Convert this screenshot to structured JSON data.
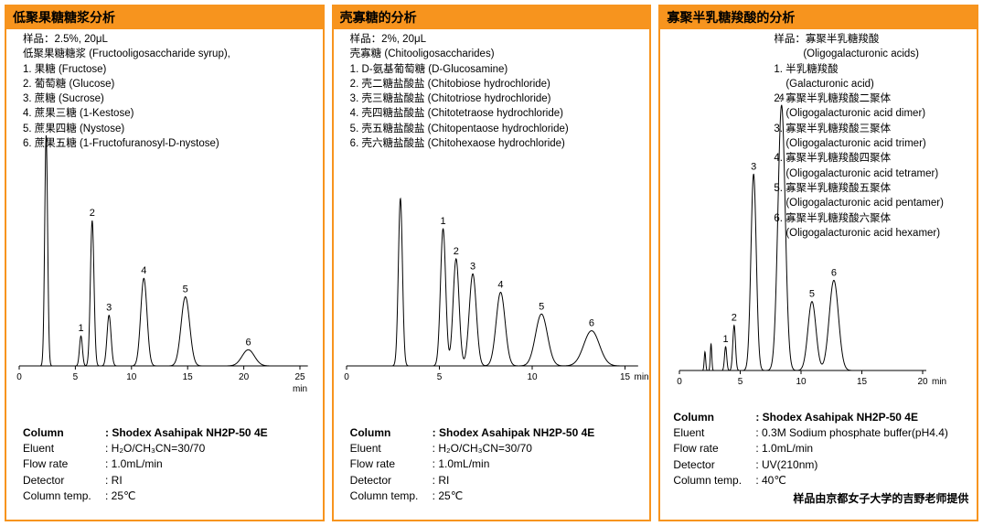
{
  "accent_color": "#F7941E",
  "misc": {
    "colon": ":"
  },
  "panels": [
    {
      "title": "低聚果糖糖浆分析",
      "sample_lines": [
        {
          "text": "样品：2.5%, 20μL",
          "indent": 0
        },
        {
          "text": "低聚果糖糖浆 (Fructooligosaccharide syrup),",
          "indent": 0
        },
        {
          "text": "1. 果糖 (Fructose)",
          "indent": 0
        },
        {
          "text": "2. 葡萄糖 (Glucose)",
          "indent": 0
        },
        {
          "text": "3. 蔗糖 (Sucrose)",
          "indent": 0
        },
        {
          "text": "4. 蔗果三糖 (1-Kestose)",
          "indent": 0
        },
        {
          "text": "5. 蔗果四糖 (Nystose)",
          "indent": 0
        },
        {
          "text": "6. 蔗果五糖 (1-Fructofuranosyl-D-nystose)",
          "indent": 0
        }
      ],
      "conditions": [
        {
          "label": "Column",
          "value": "Shodex Asahipak NH2P-50 4E",
          "bold": true
        },
        {
          "label": "Eluent",
          "value": "H₂O/CH₃CN=30/70",
          "bold": false
        },
        {
          "label": "Flow rate",
          "value": "1.0mL/min",
          "bold": false
        },
        {
          "label": "Detector",
          "value": "RI",
          "bold": false
        },
        {
          "label": "Column temp.",
          "value": "25℃",
          "bold": false
        }
      ]
    },
    {
      "title": "壳寡糖的分析",
      "sample_lines": [
        {
          "text": "样品：2%, 20μL",
          "indent": 0
        },
        {
          "text": "壳寡糖 (Chitooligosaccharides)",
          "indent": 0
        },
        {
          "text": "1. D-氨基葡萄糖 (D-Glucosamine)",
          "indent": 0
        },
        {
          "text": "2. 壳二糖盐酸盐 (Chitobiose hydrochloride)",
          "indent": 0
        },
        {
          "text": "3. 壳三糖盐酸盐 (Chitotriose hydrochloride)",
          "indent": 0
        },
        {
          "text": "4. 壳四糖盐酸盐 (Chitotetraose hydrochloride)",
          "indent": 0
        },
        {
          "text": "5. 壳五糖盐酸盐 (Chitopentaose hydrochloride)",
          "indent": 0
        },
        {
          "text": "6. 壳六糖盐酸盐 (Chitohexaose hydrochloride)",
          "indent": 0
        }
      ],
      "conditions": [
        {
          "label": "Column",
          "value": "Shodex Asahipak NH2P-50 4E",
          "bold": true
        },
        {
          "label": "Eluent",
          "value": "H₂O/CH₃CN=30/70",
          "bold": false
        },
        {
          "label": "Flow rate",
          "value": "1.0mL/min",
          "bold": false
        },
        {
          "label": "Detector",
          "value": "RI",
          "bold": false
        },
        {
          "label": "Column temp.",
          "value": "25℃",
          "bold": false
        }
      ]
    },
    {
      "title": "寡聚半乳糖羧酸的分析",
      "sample_lines": [
        {
          "text": "样品：寡聚半乳糖羧酸",
          "indent": 0
        },
        {
          "text": "(Oligogalacturonic acids)",
          "indent": 2
        },
        {
          "text": "1. 半乳糖羧酸",
          "indent": 0
        },
        {
          "text": "(Galacturonic acid)",
          "indent": 1
        },
        {
          "text": "2. 寡聚半乳糖羧酸二聚体",
          "indent": 0
        },
        {
          "text": "(Oligogalacturonic acid dimer)",
          "indent": 1
        },
        {
          "text": "3. 寡聚半乳糖羧酸三聚体",
          "indent": 0
        },
        {
          "text": "(Oligogalacturonic acid trimer)",
          "indent": 1
        },
        {
          "text": "4. 寡聚半乳糖羧酸四聚体",
          "indent": 0
        },
        {
          "text": "(Oligogalacturonic acid tetramer)",
          "indent": 1
        },
        {
          "text": "5. 寡聚半乳糖羧酸五聚体",
          "indent": 0
        },
        {
          "text": "(Oligogalacturonic acid pentamer)",
          "indent": 1
        },
        {
          "text": "6. 寡聚半乳糖羧酸六聚体",
          "indent": 0
        },
        {
          "text": "(Oligogalacturonic acid hexamer)",
          "indent": 1
        }
      ],
      "conditions": [
        {
          "label": "Column",
          "value": "Shodex Asahipak NH2P-50 4E",
          "bold": true
        },
        {
          "label": "Eluent",
          "value": "0.3M Sodium phosphate buffer(pH4.4)",
          "bold": false
        },
        {
          "label": "Flow rate",
          "value": "1.0mL/min",
          "bold": false
        },
        {
          "label": "Detector",
          "value": "UV(210nm)",
          "bold": false
        },
        {
          "label": "Column temp.",
          "value": "40℃",
          "bold": false
        }
      ],
      "footer": "样品由京都女子大学的吉野老师提供"
    }
  ],
  "chart_data": [
    {
      "type": "line",
      "title": "低聚果糖糖浆分析 (Fructooligosaccharide syrup)",
      "xlabel": "min",
      "x_range": [
        0,
        25.7
      ],
      "x_ticks": [
        0,
        5,
        10,
        15,
        20,
        25
      ],
      "xlabel_pos": "below",
      "grid": false,
      "y_axis": "detector response (RI, unlabeled, relative to tallest peak)",
      "peaks": [
        {
          "label": "",
          "name": "void/solvent",
          "time_min": 2.4,
          "rel_height": 1.0,
          "sigma_min": 0.13
        },
        {
          "label": "1",
          "name": "果糖 (Fructose)",
          "time_min": 5.5,
          "rel_height": 0.13,
          "sigma_min": 0.13
        },
        {
          "label": "2",
          "name": "葡萄糖 (Glucose)",
          "time_min": 6.5,
          "rel_height": 0.63,
          "sigma_min": 0.16
        },
        {
          "label": "3",
          "name": "蔗糖 (Sucrose)",
          "time_min": 8.0,
          "rel_height": 0.22,
          "sigma_min": 0.18
        },
        {
          "label": "4",
          "name": "蔗果三糖 (1-Kestose)",
          "time_min": 11.1,
          "rel_height": 0.38,
          "sigma_min": 0.28
        },
        {
          "label": "5",
          "name": "蔗果四糖 (Nystose)",
          "time_min": 14.8,
          "rel_height": 0.3,
          "sigma_min": 0.38
        },
        {
          "label": "6",
          "name": "蔗果五糖 (1-Fructofuranosyl-D-nystose)",
          "time_min": 20.4,
          "rel_height": 0.07,
          "sigma_min": 0.55
        }
      ]
    },
    {
      "type": "line",
      "title": "壳寡糖的分析 (Chitooligosaccharides)",
      "xlabel": "min",
      "x_range": [
        0,
        15.7
      ],
      "x_ticks": [
        0,
        5,
        10,
        15
      ],
      "xlabel_pos": "right",
      "grid": false,
      "y_axis": "detector response (RI, unlabeled, relative to tallest peak)",
      "peaks": [
        {
          "label": "",
          "name": "void/solvent",
          "time_min": 2.9,
          "rel_height": 1.0,
          "sigma_min": 0.11
        },
        {
          "label": "1",
          "name": "D-氨基葡萄糖 (D-Glucosamine)",
          "time_min": 5.2,
          "rel_height": 0.82,
          "sigma_min": 0.14
        },
        {
          "label": "2",
          "name": "壳二糖盐酸盐 (Chitobiose hydrochloride)",
          "time_min": 5.9,
          "rel_height": 0.64,
          "sigma_min": 0.16
        },
        {
          "label": "3",
          "name": "壳三糖盐酸盐 (Chitotriose hydrochloride)",
          "time_min": 6.8,
          "rel_height": 0.55,
          "sigma_min": 0.19
        },
        {
          "label": "4",
          "name": "壳四糖盐酸盐 (Chitotetraose hydrochloride)",
          "time_min": 8.3,
          "rel_height": 0.44,
          "sigma_min": 0.24
        },
        {
          "label": "5",
          "name": "壳五糖盐酸盐 (Chitopentaose hydrochloride)",
          "time_min": 10.5,
          "rel_height": 0.31,
          "sigma_min": 0.32
        },
        {
          "label": "6",
          "name": "壳六糖盐酸盐 (Chitohexaose hydrochloride)",
          "time_min": 13.2,
          "rel_height": 0.21,
          "sigma_min": 0.42
        }
      ]
    },
    {
      "type": "line",
      "title": "寡聚半乳糖羧酸的分析 (Oligogalacturonic acids)",
      "xlabel": "min",
      "x_range": [
        0,
        20.3
      ],
      "x_ticks": [
        0,
        5,
        10,
        15,
        20
      ],
      "xlabel_pos": "right",
      "grid": false,
      "y_axis": "detector response (UV 210nm, unlabeled, relative to tallest peak)",
      "peaks": [
        {
          "label": "",
          "name": "void",
          "time_min": 2.1,
          "rel_height": 0.07,
          "sigma_min": 0.06
        },
        {
          "label": "",
          "name": "void",
          "time_min": 2.6,
          "rel_height": 0.1,
          "sigma_min": 0.06
        },
        {
          "label": "1",
          "name": "半乳糖羧酸 (Galacturonic acid)",
          "time_min": 3.8,
          "rel_height": 0.09,
          "sigma_min": 0.09
        },
        {
          "label": "2",
          "name": "寡聚半乳糖羧酸二聚体 (Oligogalacturonic acid dimer)",
          "time_min": 4.5,
          "rel_height": 0.17,
          "sigma_min": 0.11
        },
        {
          "label": "3",
          "name": "寡聚半乳糖羧酸三聚体 (Oligogalacturonic acid trimer)",
          "time_min": 6.1,
          "rel_height": 0.74,
          "sigma_min": 0.22
        },
        {
          "label": "4",
          "name": "寡聚半乳糖羧酸四聚体 (Oligogalacturonic acid tetramer)",
          "time_min": 8.4,
          "rel_height": 1.0,
          "sigma_min": 0.3
        },
        {
          "label": "5",
          "name": "寡聚半乳糖羧酸五聚体 (Oligogalacturonic acid pentamer)",
          "time_min": 10.9,
          "rel_height": 0.26,
          "sigma_min": 0.33
        },
        {
          "label": "6",
          "name": "寡聚半乳糖羧酸六聚体 (Oligogalacturonic acid hexamer)",
          "time_min": 12.7,
          "rel_height": 0.34,
          "sigma_min": 0.38
        }
      ]
    }
  ]
}
